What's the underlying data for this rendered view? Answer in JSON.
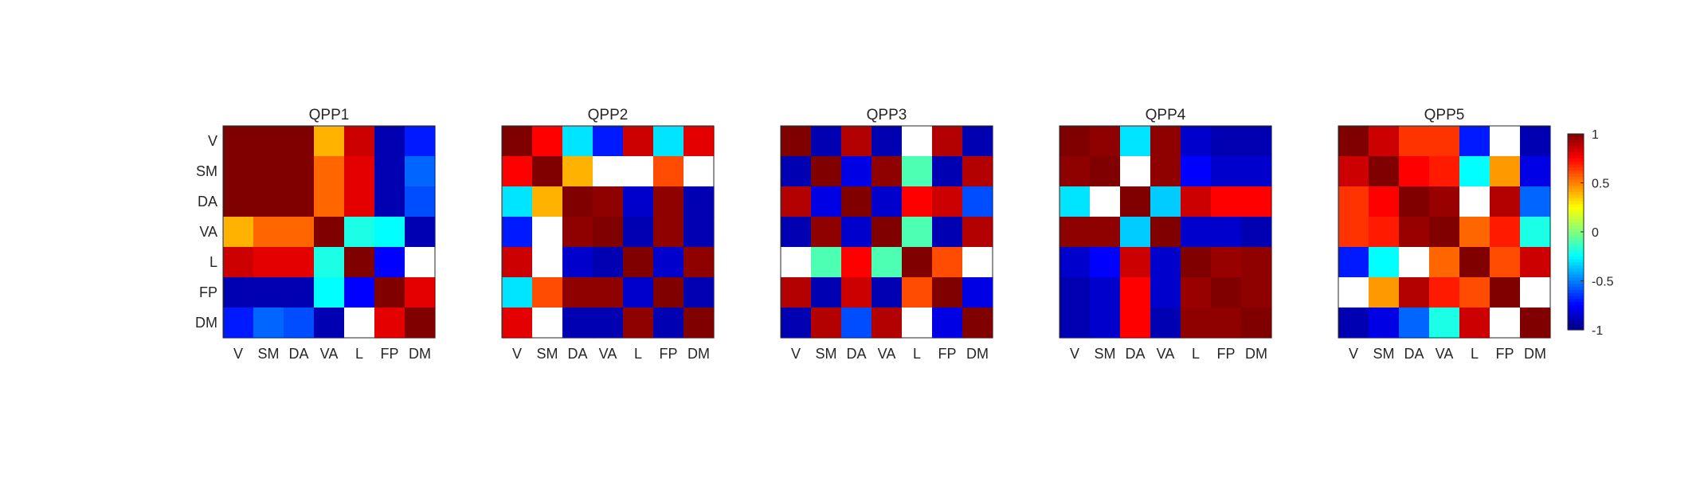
{
  "chart_data": {
    "type": "heatmap",
    "labels": [
      "V",
      "SM",
      "DA",
      "VA",
      "L",
      "FP",
      "DM"
    ],
    "colormap": "jet",
    "clim": [
      -1,
      1
    ],
    "colorbar": {
      "ticks": [
        1,
        0.5,
        0,
        -0.5,
        -1
      ],
      "tick_labels": [
        "1",
        "0.5",
        "0",
        "-0.5",
        "-1"
      ]
    },
    "panels": [
      {
        "title": "QPP1",
        "matrix": [
          [
            1,
            1,
            1,
            0.4,
            0.85,
            -0.9,
            -0.7
          ],
          [
            1,
            1,
            1,
            0.55,
            0.8,
            -0.9,
            -0.55
          ],
          [
            1,
            1,
            1,
            0.55,
            0.8,
            -0.9,
            -0.6
          ],
          [
            0.4,
            0.55,
            0.55,
            1,
            -0.2,
            -0.25,
            -0.9
          ],
          [
            0.85,
            0.8,
            0.8,
            -0.2,
            1,
            -0.75,
            null
          ],
          [
            -0.9,
            -0.9,
            -0.9,
            -0.25,
            -0.75,
            1,
            0.8
          ],
          [
            -0.7,
            -0.55,
            -0.6,
            -0.9,
            null,
            0.8,
            1
          ]
        ]
      },
      {
        "title": "QPP2",
        "matrix": [
          [
            1,
            0.75,
            -0.3,
            -0.7,
            0.85,
            -0.3,
            0.8
          ],
          [
            0.75,
            1,
            0.4,
            null,
            null,
            0.6,
            null
          ],
          [
            -0.3,
            0.4,
            1,
            0.97,
            -0.85,
            0.97,
            -0.9
          ],
          [
            -0.7,
            null,
            0.97,
            1,
            -0.9,
            0.97,
            -0.9
          ],
          [
            0.85,
            null,
            -0.85,
            -0.9,
            1,
            -0.85,
            0.97
          ],
          [
            -0.3,
            0.6,
            0.97,
            0.97,
            -0.85,
            1,
            -0.9
          ],
          [
            0.8,
            null,
            -0.9,
            -0.9,
            0.97,
            -0.9,
            1
          ]
        ]
      },
      {
        "title": "QPP3",
        "matrix": [
          [
            1,
            -0.9,
            0.9,
            -0.9,
            null,
            0.9,
            -0.9
          ],
          [
            -0.9,
            1,
            -0.8,
            0.97,
            -0.1,
            -0.9,
            0.9
          ],
          [
            0.9,
            -0.8,
            1,
            -0.85,
            0.75,
            0.85,
            -0.6
          ],
          [
            -0.9,
            0.97,
            -0.85,
            1,
            -0.1,
            -0.9,
            0.9
          ],
          [
            null,
            -0.1,
            0.75,
            -0.1,
            1,
            0.6,
            null
          ],
          [
            0.9,
            -0.9,
            0.85,
            -0.9,
            0.6,
            1,
            -0.8
          ],
          [
            -0.9,
            0.9,
            -0.6,
            0.9,
            null,
            -0.8,
            1
          ]
        ]
      },
      {
        "title": "QPP4",
        "matrix": [
          [
            1,
            0.97,
            -0.3,
            0.97,
            -0.85,
            -0.9,
            -0.9
          ],
          [
            0.97,
            1,
            null,
            0.97,
            -0.75,
            -0.85,
            -0.85
          ],
          [
            -0.3,
            null,
            1,
            -0.35,
            0.85,
            0.75,
            0.75
          ],
          [
            0.97,
            0.97,
            -0.35,
            1,
            -0.85,
            -0.85,
            -0.9
          ],
          [
            -0.85,
            -0.75,
            0.85,
            -0.85,
            1,
            0.95,
            0.97
          ],
          [
            -0.9,
            -0.85,
            0.75,
            -0.85,
            0.95,
            1,
            0.97
          ],
          [
            -0.9,
            -0.85,
            0.75,
            -0.9,
            0.97,
            0.97,
            1
          ]
        ]
      },
      {
        "title": "QPP5",
        "matrix": [
          [
            1,
            0.85,
            0.65,
            0.65,
            -0.7,
            null,
            -0.9
          ],
          [
            0.85,
            1,
            0.75,
            0.7,
            -0.25,
            0.45,
            -0.8
          ],
          [
            0.65,
            0.75,
            1,
            0.95,
            null,
            0.9,
            -0.55
          ],
          [
            0.65,
            0.7,
            0.95,
            1,
            0.55,
            0.7,
            -0.2
          ],
          [
            -0.7,
            -0.25,
            null,
            0.55,
            1,
            0.6,
            0.85
          ],
          [
            null,
            0.45,
            0.9,
            0.7,
            0.6,
            1,
            null
          ],
          [
            -0.9,
            -0.8,
            -0.55,
            -0.2,
            0.85,
            null,
            1
          ]
        ]
      }
    ]
  }
}
